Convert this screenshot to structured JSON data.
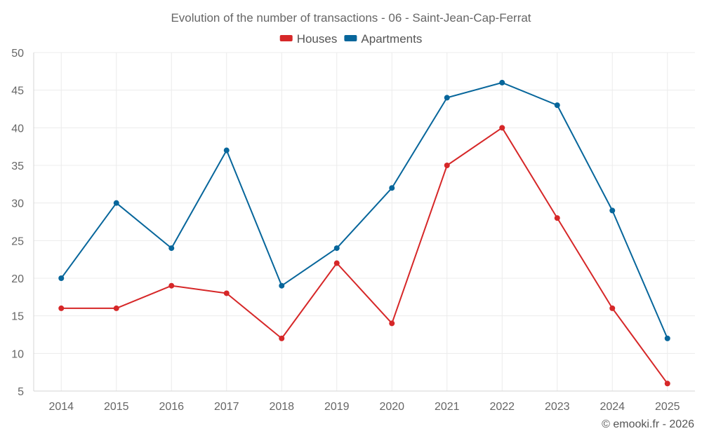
{
  "chart_data": {
    "type": "line",
    "title": "Evolution of the number of transactions - 06 - Saint-Jean-Cap-Ferrat",
    "x": [
      "2014",
      "2015",
      "2016",
      "2017",
      "2018",
      "2019",
      "2020",
      "2021",
      "2022",
      "2023",
      "2024",
      "2025"
    ],
    "series": [
      {
        "name": "Houses",
        "color": "#d62728",
        "values": [
          16,
          16,
          19,
          18,
          12,
          22,
          14,
          35,
          40,
          28,
          16,
          6
        ]
      },
      {
        "name": "Apartments",
        "color": "#07669b",
        "values": [
          20,
          30,
          24,
          37,
          19,
          24,
          32,
          44,
          46,
          43,
          29,
          12
        ]
      }
    ],
    "ylim": [
      5,
      50
    ],
    "yticks": [
      "5",
      "10",
      "15",
      "20",
      "25",
      "30",
      "35",
      "40",
      "45",
      "50"
    ],
    "grid": true,
    "legend": "top-center",
    "xlabel": "",
    "ylabel": ""
  },
  "credit": "© emooki.fr - 2026"
}
